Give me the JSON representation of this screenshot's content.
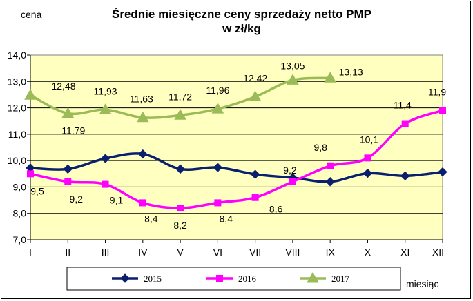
{
  "chart_data": {
    "type": "line",
    "title_line1": "Średnie miesięczne ceny sprzedaży netto PMP",
    "title_line2": "w zł/kg",
    "ylabel": "cena",
    "xlabel": "miesiąc",
    "categories": [
      "I",
      "II",
      "III",
      "IV",
      "V",
      "VI",
      "VII",
      "VIII",
      "IX",
      "X",
      "XI",
      "XII"
    ],
    "ylim": [
      7.0,
      14.0
    ],
    "yticks": [
      "7,0",
      "8,0",
      "9,0",
      "10,0",
      "11,0",
      "12,0",
      "13,0",
      "14,0"
    ],
    "grid": true,
    "legend_position": "bottom",
    "series": [
      {
        "name": "2015",
        "color": "#0a1f6e",
        "marker": "diamond",
        "values": [
          9.72,
          9.68,
          10.08,
          10.25,
          9.68,
          9.74,
          9.48,
          9.35,
          9.2,
          9.52,
          9.42,
          9.57
        ],
        "labels": [
          "",
          "",
          "",
          "",
          "",
          "",
          "",
          "",
          "",
          "",
          "",
          ""
        ]
      },
      {
        "name": "2016",
        "color": "#ff00ff",
        "marker": "square",
        "values": [
          9.5,
          9.2,
          9.1,
          8.4,
          8.2,
          8.4,
          8.6,
          9.2,
          9.8,
          10.1,
          11.4,
          11.9
        ],
        "labels": [
          "9,5",
          "9,2",
          "9,1",
          "8,4",
          "8,2",
          "8,4",
          "8,6",
          "9,2",
          "9,8",
          "10,1",
          "11,4",
          "11,9"
        ]
      },
      {
        "name": "2017",
        "color": "#9bbb59",
        "marker": "triangle",
        "values": [
          12.48,
          11.79,
          11.93,
          11.63,
          11.72,
          11.96,
          12.42,
          13.05,
          13.13,
          null,
          null,
          null
        ],
        "labels": [
          "12,48",
          "11,79",
          "11,93",
          "11,63",
          "11,72",
          "11,96",
          "12,42",
          "13,05",
          "13,13",
          "",
          "",
          ""
        ]
      }
    ]
  }
}
